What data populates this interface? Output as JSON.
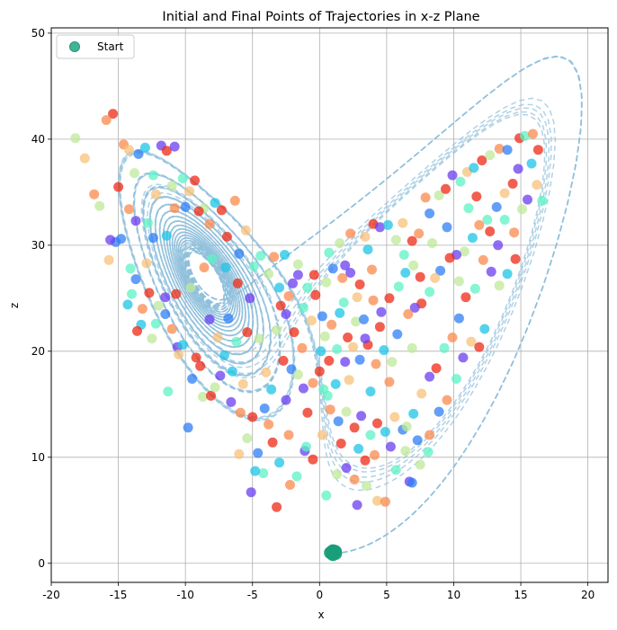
{
  "chart_data": {
    "type": "scatter",
    "title": "Initial and Final Points of Trajectories in x-z Plane",
    "xlabel": "x",
    "ylabel": "z",
    "xlim": [
      -20,
      21.5
    ],
    "ylim": [
      -1.8,
      50.5
    ],
    "xticks": [
      -20,
      -15,
      -10,
      -5,
      0,
      5,
      10,
      15,
      20
    ],
    "yticks": [
      0,
      10,
      20,
      30,
      40,
      50
    ],
    "grid": true,
    "legend": {
      "placement": "top-left",
      "entries": [
        "Start"
      ]
    },
    "start_color": "#1a9e7a",
    "trajectory_color": "#8fbfdc",
    "final_colormap": [
      "#6a3df0",
      "#2f7ff5",
      "#1ec4e6",
      "#5ef2c6",
      "#bfe89a",
      "#f8c079",
      "#fb8a4d",
      "#ee2a15"
    ],
    "series": [
      {
        "name": "Start",
        "points": [
          [
            1.0,
            0.8
          ],
          [
            1.1,
            1.0
          ],
          [
            0.9,
            1.1
          ],
          [
            1.2,
            0.9
          ],
          [
            0.8,
            1.0
          ],
          [
            1.0,
            1.2
          ],
          [
            1.15,
            1.15
          ],
          [
            0.95,
            0.85
          ],
          [
            1.05,
            1.05
          ],
          [
            1.2,
            1.1
          ]
        ]
      }
    ],
    "final_points": [
      [
        -15.4,
        42.4,
        7
      ],
      [
        -14.6,
        39.5,
        6
      ],
      [
        -14.2,
        39.0,
        5
      ],
      [
        -13.5,
        38.6,
        1
      ],
      [
        -13.0,
        39.2,
        2
      ],
      [
        -11.8,
        39.4,
        0
      ],
      [
        -11.4,
        38.9,
        7
      ],
      [
        -10.8,
        39.3,
        0
      ],
      [
        -10.2,
        36.3,
        3
      ],
      [
        -9.3,
        36.1,
        7
      ],
      [
        -8.6,
        33.5,
        4
      ],
      [
        -7.8,
        34.0,
        2
      ],
      [
        -7.3,
        33.3,
        7
      ],
      [
        -6.3,
        34.2,
        6
      ],
      [
        -5.5,
        31.4,
        5
      ],
      [
        -4.4,
        29.0,
        3
      ],
      [
        -3.4,
        28.9,
        6
      ],
      [
        -2.6,
        29.1,
        2
      ],
      [
        -1.6,
        28.2,
        4
      ],
      [
        -0.4,
        27.2,
        7
      ],
      [
        -15.0,
        35.5,
        7
      ],
      [
        -14.8,
        30.6,
        1
      ],
      [
        -14.2,
        33.4,
        6
      ],
      [
        -13.7,
        32.3,
        0
      ],
      [
        -12.8,
        32.1,
        3
      ],
      [
        -12.2,
        34.8,
        5
      ],
      [
        -11.4,
        30.9,
        2
      ],
      [
        -10.8,
        33.5,
        6
      ],
      [
        -10.0,
        33.6,
        1
      ],
      [
        -9.0,
        33.2,
        7
      ],
      [
        -14.1,
        27.8,
        3
      ],
      [
        -13.7,
        26.8,
        1
      ],
      [
        -12.7,
        25.5,
        7
      ],
      [
        -12.0,
        24.3,
        4
      ],
      [
        -11.5,
        23.5,
        1
      ],
      [
        -11.0,
        22.1,
        6
      ],
      [
        -10.6,
        20.4,
        0
      ],
      [
        -10.2,
        20.6,
        2
      ],
      [
        -9.2,
        19.4,
        7
      ],
      [
        -8.2,
        23.0,
        0
      ],
      [
        -7.6,
        21.3,
        5
      ],
      [
        -6.8,
        23.1,
        1
      ],
      [
        -6.2,
        20.9,
        3
      ],
      [
        -5.4,
        21.8,
        7
      ],
      [
        -4.5,
        21.2,
        4
      ],
      [
        -13.3,
        22.5,
        2
      ],
      [
        -12.2,
        22.6,
        3
      ],
      [
        -11.5,
        25.1,
        0
      ],
      [
        -10.7,
        25.4,
        7
      ],
      [
        -9.6,
        26.0,
        4
      ],
      [
        -8.6,
        27.9,
        6
      ],
      [
        -8.0,
        28.7,
        3
      ],
      [
        -7.0,
        27.9,
        2
      ],
      [
        -6.1,
        26.4,
        7
      ],
      [
        -5.2,
        25.0,
        0
      ],
      [
        -9.8,
        12.8,
        1
      ],
      [
        -8.7,
        15.7,
        4
      ],
      [
        -8.1,
        15.8,
        7
      ],
      [
        -7.4,
        17.7,
        0
      ],
      [
        -6.5,
        18.1,
        2
      ],
      [
        -5.9,
        14.2,
        6
      ],
      [
        -5.4,
        11.8,
        4
      ],
      [
        -4.6,
        10.4,
        1
      ],
      [
        -4.2,
        8.5,
        3
      ],
      [
        -3.5,
        11.4,
        7
      ],
      [
        -3.0,
        9.5,
        2
      ],
      [
        -2.3,
        12.1,
        6
      ],
      [
        -1.7,
        8.2,
        3
      ],
      [
        -1.1,
        10.6,
        0
      ],
      [
        -0.5,
        9.8,
        7
      ],
      [
        -4.0,
        18.0,
        5
      ],
      [
        -3.6,
        16.4,
        2
      ],
      [
        -2.7,
        19.1,
        7
      ],
      [
        -2.1,
        18.3,
        1
      ],
      [
        -1.6,
        17.8,
        4
      ],
      [
        -1.2,
        16.5,
        0
      ],
      [
        -0.5,
        17.0,
        6
      ],
      [
        0.0,
        18.1,
        7
      ],
      [
        0.6,
        15.8,
        3
      ],
      [
        1.2,
        16.9,
        2
      ],
      [
        -3.2,
        22.0,
        4
      ],
      [
        -2.5,
        23.5,
        0
      ],
      [
        -1.9,
        21.8,
        7
      ],
      [
        -1.2,
        24.1,
        3
      ],
      [
        -0.6,
        22.9,
        5
      ],
      [
        0.2,
        23.3,
        1
      ],
      [
        0.9,
        22.5,
        6
      ],
      [
        1.5,
        23.6,
        2
      ],
      [
        2.1,
        21.3,
        7
      ],
      [
        2.7,
        22.8,
        4
      ],
      [
        -3.0,
        26.0,
        2
      ],
      [
        -2.3,
        25.2,
        6
      ],
      [
        -1.6,
        27.2,
        0
      ],
      [
        -0.9,
        26.0,
        3
      ],
      [
        -0.3,
        25.3,
        7
      ],
      [
        0.5,
        26.5,
        4
      ],
      [
        1.0,
        27.8,
        1
      ],
      [
        1.7,
        26.9,
        6
      ],
      [
        2.3,
        27.4,
        0
      ],
      [
        3.0,
        26.3,
        7
      ],
      [
        0.1,
        20.0,
        2
      ],
      [
        0.7,
        19.1,
        7
      ],
      [
        1.3,
        20.2,
        3
      ],
      [
        1.9,
        19.0,
        0
      ],
      [
        2.5,
        20.4,
        5
      ],
      [
        3.0,
        19.2,
        1
      ],
      [
        3.6,
        20.6,
        7
      ],
      [
        4.2,
        18.8,
        6
      ],
      [
        4.8,
        20.1,
        2
      ],
      [
        5.4,
        19.0,
        4
      ],
      [
        0.8,
        14.5,
        6
      ],
      [
        1.4,
        13.4,
        1
      ],
      [
        2.0,
        14.3,
        4
      ],
      [
        2.6,
        12.8,
        7
      ],
      [
        3.1,
        13.9,
        0
      ],
      [
        3.8,
        12.1,
        3
      ],
      [
        4.3,
        13.2,
        7
      ],
      [
        4.9,
        12.4,
        2
      ],
      [
        5.6,
        13.8,
        5
      ],
      [
        6.2,
        12.6,
        1
      ],
      [
        0.5,
        6.4,
        3
      ],
      [
        1.3,
        8.4,
        4
      ],
      [
        2.0,
        9.0,
        0
      ],
      [
        2.6,
        7.9,
        6
      ],
      [
        2.8,
        5.5,
        0
      ],
      [
        3.5,
        7.3,
        4
      ],
      [
        4.3,
        5.9,
        5
      ],
      [
        4.9,
        5.8,
        6
      ],
      [
        5.7,
        8.8,
        3
      ],
      [
        6.7,
        7.7,
        0
      ],
      [
        -3.2,
        5.3,
        7
      ],
      [
        -5.1,
        6.7,
        0
      ],
      [
        -6.0,
        10.3,
        5
      ],
      [
        -4.8,
        8.7,
        2
      ],
      [
        -2.2,
        7.4,
        6
      ],
      [
        3.4,
        30.8,
        5
      ],
      [
        4.0,
        32.0,
        7
      ],
      [
        4.5,
        31.7,
        0
      ],
      [
        5.1,
        31.9,
        2
      ],
      [
        5.7,
        30.5,
        4
      ],
      [
        6.3,
        29.1,
        3
      ],
      [
        6.9,
        30.4,
        7
      ],
      [
        7.4,
        31.1,
        6
      ],
      [
        8.2,
        33.0,
        1
      ],
      [
        8.9,
        34.7,
        4
      ],
      [
        9.4,
        35.3,
        7
      ],
      [
        9.9,
        36.6,
        0
      ],
      [
        10.5,
        36.0,
        3
      ],
      [
        11.0,
        36.9,
        5
      ],
      [
        11.5,
        37.3,
        2
      ],
      [
        12.1,
        38.0,
        7
      ],
      [
        12.7,
        38.5,
        4
      ],
      [
        13.4,
        39.1,
        6
      ],
      [
        14.0,
        39.0,
        1
      ],
      [
        14.9,
        40.1,
        7
      ],
      [
        15.3,
        40.3,
        3
      ],
      [
        15.9,
        40.5,
        6
      ],
      [
        16.3,
        39.0,
        7
      ],
      [
        15.8,
        37.7,
        2
      ],
      [
        14.8,
        37.2,
        0
      ],
      [
        14.4,
        35.8,
        7
      ],
      [
        13.8,
        34.9,
        5
      ],
      [
        13.2,
        33.6,
        1
      ],
      [
        12.5,
        32.4,
        3
      ],
      [
        11.9,
        31.9,
        6
      ],
      [
        11.4,
        30.7,
        2
      ],
      [
        10.8,
        29.4,
        4
      ],
      [
        10.2,
        29.1,
        0
      ],
      [
        9.7,
        28.8,
        7
      ],
      [
        9.0,
        27.6,
        1
      ],
      [
        8.6,
        26.9,
        5
      ],
      [
        8.2,
        25.6,
        3
      ],
      [
        7.6,
        24.5,
        7
      ],
      [
        7.1,
        24.1,
        0
      ],
      [
        6.6,
        23.5,
        6
      ],
      [
        14.6,
        28.7,
        7
      ],
      [
        14.0,
        27.3,
        2
      ],
      [
        13.4,
        26.2,
        4
      ],
      [
        12.8,
        27.5,
        0
      ],
      [
        12.2,
        28.6,
        6
      ],
      [
        11.6,
        25.9,
        3
      ],
      [
        10.9,
        25.1,
        7
      ],
      [
        10.4,
        23.1,
        1
      ],
      [
        9.9,
        21.3,
        6
      ],
      [
        9.3,
        20.3,
        3
      ],
      [
        8.7,
        18.4,
        7
      ],
      [
        8.2,
        17.6,
        0
      ],
      [
        7.6,
        16.0,
        5
      ],
      [
        7.0,
        14.1,
        2
      ],
      [
        6.5,
        12.9,
        4
      ],
      [
        6.9,
        7.6,
        1
      ],
      [
        7.5,
        9.3,
        4
      ],
      [
        8.2,
        12.1,
        6
      ],
      [
        8.9,
        14.3,
        1
      ],
      [
        9.5,
        15.4,
        6
      ],
      [
        10.2,
        17.4,
        3
      ],
      [
        10.7,
        19.4,
        0
      ],
      [
        11.3,
        20.9,
        5
      ],
      [
        11.9,
        20.4,
        7
      ],
      [
        12.3,
        22.1,
        2
      ],
      [
        4.0,
        24.8,
        6
      ],
      [
        4.6,
        23.7,
        0
      ],
      [
        5.2,
        25.0,
        7
      ],
      [
        5.9,
        26.1,
        3
      ],
      [
        6.4,
        27.4,
        2
      ],
      [
        7.0,
        28.1,
        4
      ],
      [
        7.5,
        27.0,
        7
      ],
      [
        3.3,
        23.0,
        1
      ],
      [
        2.8,
        25.1,
        5
      ],
      [
        3.9,
        27.7,
        6
      ],
      [
        -16.8,
        34.8,
        6
      ],
      [
        -16.4,
        33.7,
        4
      ],
      [
        -17.5,
        38.2,
        5
      ],
      [
        -18.2,
        40.1,
        4
      ],
      [
        -15.9,
        41.8,
        6
      ],
      [
        -15.7,
        28.6,
        5
      ],
      [
        -15.2,
        30.3,
        1
      ],
      [
        -14.0,
        25.4,
        3
      ],
      [
        -13.2,
        24.0,
        6
      ],
      [
        -12.5,
        21.2,
        4
      ],
      [
        -11.3,
        16.2,
        3
      ],
      [
        -10.5,
        19.7,
        5
      ],
      [
        -9.5,
        17.4,
        1
      ],
      [
        -8.9,
        18.6,
        7
      ],
      [
        -7.8,
        16.6,
        4
      ],
      [
        -7.1,
        19.6,
        2
      ],
      [
        -6.6,
        15.2,
        0
      ],
      [
        -5.7,
        16.9,
        5
      ],
      [
        -5.0,
        13.8,
        7
      ],
      [
        -4.1,
        14.6,
        1
      ],
      [
        2.3,
        31.1,
        6
      ],
      [
        1.5,
        30.2,
        4
      ],
      [
        0.7,
        29.3,
        3
      ],
      [
        1.9,
        28.1,
        0
      ],
      [
        3.6,
        29.6,
        2
      ],
      [
        -2.9,
        24.3,
        7
      ],
      [
        -1.3,
        20.3,
        6
      ],
      [
        0.4,
        21.4,
        4
      ],
      [
        1.8,
        24.6,
        3
      ],
      [
        3.4,
        21.2,
        0
      ],
      [
        4.5,
        22.3,
        7
      ],
      [
        5.8,
        21.6,
        1
      ],
      [
        6.9,
        20.3,
        4
      ],
      [
        5.2,
        17.1,
        6
      ],
      [
        3.8,
        16.2,
        2
      ],
      [
        2.2,
        17.3,
        5
      ],
      [
        0.3,
        16.4,
        3
      ],
      [
        -0.9,
        14.2,
        7
      ],
      [
        -2.5,
        15.4,
        0
      ],
      [
        -3.8,
        13.1,
        6
      ],
      [
        15.5,
        34.3,
        0
      ],
      [
        16.2,
        35.7,
        5
      ],
      [
        16.6,
        34.2,
        3
      ],
      [
        15.1,
        33.4,
        4
      ],
      [
        10.4,
        26.6,
        4
      ],
      [
        11.1,
        33.5,
        3
      ],
      [
        9.5,
        31.7,
        1
      ],
      [
        8.4,
        30.2,
        4
      ],
      [
        7.9,
        34.5,
        6
      ],
      [
        6.2,
        32.1,
        5
      ],
      [
        12.7,
        31.3,
        7
      ],
      [
        13.3,
        30.0,
        0
      ],
      [
        13.8,
        32.4,
        3
      ],
      [
        14.5,
        31.2,
        6
      ],
      [
        11.7,
        34.6,
        7
      ],
      [
        -13.8,
        36.8,
        4
      ],
      [
        -12.4,
        36.6,
        3
      ],
      [
        -11.0,
        35.6,
        4
      ],
      [
        -9.7,
        35.1,
        5
      ],
      [
        -8.2,
        32.0,
        6
      ],
      [
        -6.9,
        30.8,
        7
      ],
      [
        -6.0,
        29.2,
        1
      ],
      [
        -4.9,
        28.0,
        3
      ],
      [
        -3.8,
        27.3,
        4
      ],
      [
        -2.0,
        26.4,
        0
      ],
      [
        -15.6,
        30.5,
        0
      ],
      [
        -14.3,
        24.4,
        2
      ],
      [
        -13.6,
        21.9,
        7
      ],
      [
        -12.9,
        28.3,
        5
      ],
      [
        -12.4,
        30.7,
        1
      ],
      [
        -1.0,
        11.0,
        3
      ],
      [
        0.2,
        12.1,
        5
      ],
      [
        1.6,
        11.3,
        7
      ],
      [
        2.9,
        10.8,
        2
      ],
      [
        4.1,
        10.2,
        6
      ],
      [
        5.3,
        11.0,
        0
      ],
      [
        6.4,
        10.6,
        4
      ],
      [
        7.3,
        11.6,
        1
      ],
      [
        8.1,
        10.5,
        3
      ],
      [
        3.4,
        9.7,
        7
      ]
    ]
  }
}
